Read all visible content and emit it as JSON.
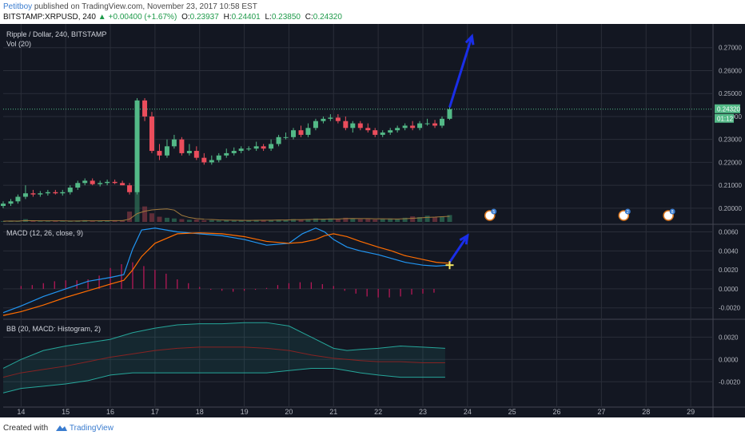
{
  "header": {
    "author": "Petitboy",
    "published_text": "published on TradingView.com, November 23, 2017 10:58 EST",
    "symbol": "BITSTAMP:XRPUSD, 240",
    "change": "+0.00400 (+1.67%)",
    "o_label": "O:",
    "o_value": "0.23937",
    "h_label": "H:",
    "h_value": "0.24401",
    "l_label": "L:",
    "l_value": "0.23850",
    "c_label": "C:",
    "c_value": "0.24320"
  },
  "panes": {
    "price_title": "Ripple / Dollar, 240, BITSTAMP",
    "vol_title": "Vol (20)",
    "macd_title": "MACD (12, 26, close, 9)",
    "bb_title": "BB (20, MACD: Histogram, 2)"
  },
  "price_axis": {
    "ticks": [
      "0.27000",
      "0.26000",
      "0.25000",
      "0.24000",
      "0.23000",
      "0.22000",
      "0.21000",
      "0.20000"
    ],
    "current_label": "0.24320",
    "countdown_label": "01:12"
  },
  "macd_axis": {
    "ticks": [
      "0.0060",
      "0.0040",
      "0.0020",
      "0.0000",
      "-0.0020"
    ]
  },
  "bb_axis": {
    "ticks": [
      "0.0020",
      "0.0000",
      "-0.0020"
    ]
  },
  "x_axis": {
    "ticks": [
      "14",
      "15",
      "16",
      "17",
      "18",
      "19",
      "20",
      "21",
      "22",
      "23",
      "24",
      "25",
      "26",
      "27",
      "28",
      "29"
    ]
  },
  "events": [
    "5",
    "2",
    "8"
  ],
  "footer": {
    "created_with": "Created with",
    "brand": "TradingView"
  },
  "colors": {
    "background": "#131722",
    "grid": "#2a2e39",
    "up": "#53b987",
    "down": "#eb4d5c",
    "macd_line": "#2196f3",
    "signal_line": "#ff6d00",
    "arrow": "#1a2ee8",
    "bb_upper": "#26a69a",
    "bb_basis": "#872323"
  },
  "chart_data": [
    {
      "type": "candlestick",
      "title": "Ripple / Dollar, 240, BITSTAMP",
      "x_range": [
        13.6,
        29.5
      ],
      "ylim": [
        0.193,
        0.28
      ],
      "x": [
        13.6,
        13.77,
        13.93,
        14.1,
        14.27,
        14.43,
        14.6,
        14.77,
        14.93,
        15.1,
        15.27,
        15.43,
        15.6,
        15.77,
        15.93,
        16.1,
        16.27,
        16.43,
        16.6,
        16.77,
        16.93,
        17.1,
        17.27,
        17.43,
        17.6,
        17.77,
        17.93,
        18.1,
        18.27,
        18.43,
        18.6,
        18.77,
        18.93,
        19.1,
        19.27,
        19.43,
        19.6,
        19.77,
        19.93,
        20.1,
        20.27,
        20.43,
        20.6,
        20.77,
        20.93,
        21.1,
        21.27,
        21.43,
        21.6,
        21.77,
        21.93,
        22.1,
        22.27,
        22.43,
        22.6,
        22.77,
        22.93,
        23.1,
        23.27,
        23.43,
        23.6
      ],
      "open": [
        0.201,
        0.202,
        0.203,
        0.205,
        0.2065,
        0.206,
        0.2065,
        0.207,
        0.2065,
        0.207,
        0.209,
        0.211,
        0.212,
        0.2105,
        0.211,
        0.2115,
        0.211,
        0.21,
        0.207,
        0.247,
        0.24,
        0.225,
        0.223,
        0.227,
        0.23,
        0.224,
        0.225,
        0.222,
        0.22,
        0.221,
        0.223,
        0.224,
        0.225,
        0.226,
        0.226,
        0.227,
        0.226,
        0.228,
        0.231,
        0.231,
        0.234,
        0.232,
        0.235,
        0.238,
        0.239,
        0.2395,
        0.238,
        0.235,
        0.237,
        0.235,
        0.234,
        0.232,
        0.233,
        0.234,
        0.235,
        0.236,
        0.235,
        0.237,
        0.237,
        0.236,
        0.239
      ],
      "close": [
        0.202,
        0.203,
        0.205,
        0.2065,
        0.206,
        0.2065,
        0.207,
        0.2065,
        0.207,
        0.209,
        0.211,
        0.212,
        0.2105,
        0.211,
        0.2115,
        0.211,
        0.21,
        0.207,
        0.247,
        0.24,
        0.225,
        0.223,
        0.227,
        0.23,
        0.224,
        0.225,
        0.222,
        0.22,
        0.221,
        0.223,
        0.224,
        0.225,
        0.226,
        0.226,
        0.227,
        0.226,
        0.228,
        0.231,
        0.231,
        0.234,
        0.232,
        0.235,
        0.238,
        0.239,
        0.2395,
        0.238,
        0.235,
        0.237,
        0.235,
        0.234,
        0.232,
        0.233,
        0.234,
        0.235,
        0.236,
        0.235,
        0.237,
        0.237,
        0.236,
        0.239,
        0.2432
      ],
      "high": [
        0.203,
        0.204,
        0.206,
        0.21,
        0.208,
        0.2075,
        0.208,
        0.208,
        0.208,
        0.21,
        0.212,
        0.213,
        0.213,
        0.212,
        0.2125,
        0.2125,
        0.212,
        0.211,
        0.248,
        0.248,
        0.242,
        0.228,
        0.23,
        0.232,
        0.231,
        0.228,
        0.227,
        0.224,
        0.223,
        0.224,
        0.226,
        0.2265,
        0.227,
        0.227,
        0.229,
        0.228,
        0.23,
        0.232,
        0.233,
        0.235,
        0.236,
        0.237,
        0.239,
        0.24,
        0.241,
        0.241,
        0.24,
        0.238,
        0.238,
        0.237,
        0.235,
        0.234,
        0.235,
        0.236,
        0.237,
        0.238,
        0.238,
        0.239,
        0.2385,
        0.24,
        0.244
      ],
      "low": [
        0.2,
        0.201,
        0.202,
        0.204,
        0.205,
        0.205,
        0.2055,
        0.206,
        0.2055,
        0.206,
        0.208,
        0.21,
        0.21,
        0.2095,
        0.21,
        0.2105,
        0.21,
        0.206,
        0.206,
        0.238,
        0.224,
        0.221,
        0.222,
        0.226,
        0.223,
        0.223,
        0.221,
        0.219,
        0.219,
        0.22,
        0.222,
        0.223,
        0.224,
        0.225,
        0.225,
        0.225,
        0.225,
        0.227,
        0.23,
        0.23,
        0.231,
        0.231,
        0.234,
        0.237,
        0.238,
        0.237,
        0.234,
        0.233,
        0.234,
        0.233,
        0.231,
        0.231,
        0.232,
        0.233,
        0.234,
        0.234,
        0.234,
        0.236,
        0.235,
        0.235,
        0.2385
      ],
      "volume": [
        0.02,
        0.03,
        0.02,
        0.08,
        0.03,
        0.02,
        0.02,
        0.03,
        0.02,
        0.03,
        0.04,
        0.05,
        0.03,
        0.03,
        0.03,
        0.04,
        0.05,
        0.3,
        1.0,
        0.45,
        0.25,
        0.15,
        0.12,
        0.1,
        0.08,
        0.06,
        0.07,
        0.05,
        0.05,
        0.04,
        0.05,
        0.04,
        0.05,
        0.04,
        0.06,
        0.05,
        0.06,
        0.07,
        0.06,
        0.08,
        0.06,
        0.08,
        0.1,
        0.09,
        0.1,
        0.08,
        0.12,
        0.1,
        0.08,
        0.09,
        0.07,
        0.08,
        0.1,
        0.09,
        0.12,
        0.16,
        0.14,
        0.18,
        0.14,
        0.16,
        0.2
      ],
      "last_price": 0.2432,
      "forecast_arrow": {
        "from": [
          23.6,
          0.244
        ],
        "to": [
          24.1,
          0.275
        ]
      }
    },
    {
      "type": "line",
      "title": "MACD (12, 26, close, 9)",
      "x_range": [
        13.6,
        29.5
      ],
      "ylim": [
        -0.0032,
        0.0068
      ],
      "x": [
        13.6,
        14.0,
        14.5,
        15.0,
        15.5,
        16.0,
        16.3,
        16.5,
        16.7,
        17.0,
        17.5,
        18.0,
        18.5,
        19.0,
        19.5,
        20.0,
        20.3,
        20.6,
        20.8,
        21.0,
        21.3,
        21.6,
        22.0,
        22.3,
        22.6,
        23.0,
        23.3,
        23.6
      ],
      "series": [
        {
          "name": "MACD",
          "values": [
            -0.0025,
            -0.0018,
            -0.0008,
            0.0,
            0.0008,
            0.0012,
            0.0015,
            0.0042,
            0.0062,
            0.0064,
            0.006,
            0.0058,
            0.0056,
            0.0052,
            0.0046,
            0.0048,
            0.0058,
            0.0064,
            0.006,
            0.0052,
            0.0044,
            0.004,
            0.0036,
            0.0032,
            0.0028,
            0.0025,
            0.0024,
            0.0025
          ]
        },
        {
          "name": "Signal",
          "values": [
            -0.0028,
            -0.0024,
            -0.0017,
            -0.0009,
            -0.0002,
            0.0005,
            0.0009,
            0.002,
            0.0034,
            0.0048,
            0.0058,
            0.0059,
            0.0058,
            0.0055,
            0.005,
            0.0048,
            0.0049,
            0.0052,
            0.0056,
            0.0058,
            0.0055,
            0.005,
            0.0044,
            0.004,
            0.0035,
            0.0031,
            0.0028,
            0.0027
          ]
        }
      ],
      "histogram": [
        0.0003,
        0.0004,
        0.0006,
        0.0008,
        0.0009,
        0.0009,
        0.001,
        0.0014,
        0.0022,
        0.0026,
        0.0028,
        0.0024,
        0.002,
        0.0016,
        0.001,
        0.0006,
        0.0002,
        -0.0001,
        -0.0002,
        -0.0003,
        -0.0002,
        -0.0001,
        0.0001,
        0.0004,
        0.0006,
        0.0007,
        0.0007,
        0.0005,
        0.0003,
        -0.0002,
        -0.0005,
        -0.0008,
        -0.0009,
        -0.0009,
        -0.0008,
        -0.0006,
        -0.0005,
        -0.0004
      ],
      "histogram_x_start": 14.0,
      "histogram_x_step": 0.25,
      "forecast_arrow": {
        "from": [
          23.6,
          0.0028
        ],
        "to": [
          24.0,
          0.0056
        ]
      }
    },
    {
      "type": "line",
      "title": "BB (20, MACD: Histogram, 2)",
      "x_range": [
        13.6,
        29.5
      ],
      "ylim": [
        -0.0042,
        0.0036
      ],
      "x": [
        13.6,
        14.0,
        14.5,
        15.0,
        15.5,
        16.0,
        16.5,
        17.0,
        17.5,
        18.0,
        18.5,
        19.0,
        19.5,
        20.0,
        20.5,
        21.0,
        21.3,
        21.6,
        22.0,
        22.5,
        23.0,
        23.5
      ],
      "series": [
        {
          "name": "Upper",
          "values": [
            -0.0008,
            0.0,
            0.0008,
            0.0012,
            0.0015,
            0.0018,
            0.0024,
            0.0028,
            0.0031,
            0.0032,
            0.0032,
            0.0033,
            0.0033,
            0.003,
            0.002,
            0.001,
            0.0008,
            0.0009,
            0.001,
            0.0012,
            0.0011,
            0.001
          ]
        },
        {
          "name": "Basis",
          "values": [
            -0.0016,
            -0.0012,
            -0.0009,
            -0.0006,
            -0.0002,
            0.0002,
            0.0005,
            0.0008,
            0.001,
            0.0011,
            0.0011,
            0.0011,
            0.001,
            0.0008,
            0.0004,
            0.0001,
            0.0,
            -0.0001,
            -0.0002,
            -0.0002,
            -0.0003,
            -0.0003
          ]
        },
        {
          "name": "Lower",
          "values": [
            -0.003,
            -0.0026,
            -0.0024,
            -0.0022,
            -0.0019,
            -0.0014,
            -0.0012,
            -0.0012,
            -0.0012,
            -0.0012,
            -0.0012,
            -0.0012,
            -0.0012,
            -0.001,
            -0.0008,
            -0.0008,
            -0.001,
            -0.0012,
            -0.0014,
            -0.0016,
            -0.0016,
            -0.0016
          ]
        }
      ]
    }
  ]
}
